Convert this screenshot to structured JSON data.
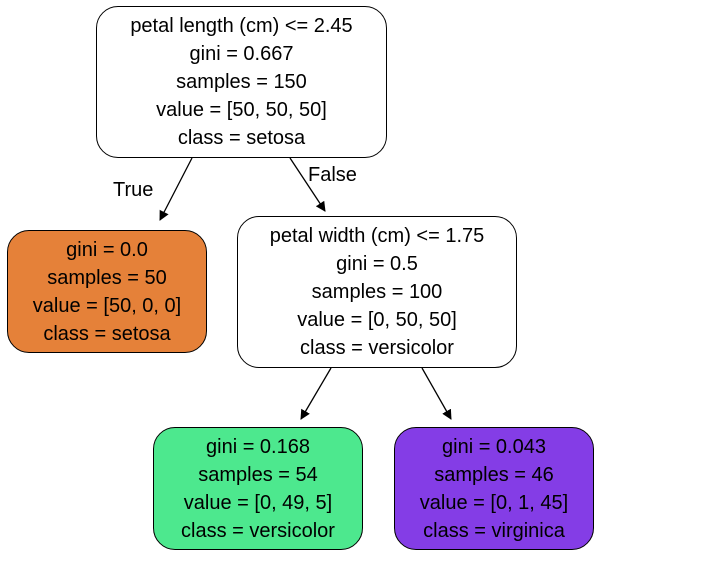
{
  "tree": {
    "root": {
      "lines": [
        "petal length (cm) <= 2.45",
        "gini = 0.667",
        "samples = 150",
        "value = [50, 50, 50]",
        "class = setosa"
      ],
      "fill": "#ffffff"
    },
    "left_leaf": {
      "lines": [
        "gini = 0.0",
        "samples = 50",
        "value = [50, 0, 0]",
        "class = setosa"
      ],
      "fill": "#e58139"
    },
    "right_split": {
      "lines": [
        "petal width (cm) <= 1.75",
        "gini = 0.5",
        "samples = 100",
        "value = [0, 50, 50]",
        "class = versicolor"
      ],
      "fill": "#ffffff"
    },
    "versicolor_leaf": {
      "lines": [
        "gini = 0.168",
        "samples = 54",
        "value = [0, 49, 5]",
        "class = versicolor"
      ],
      "fill": "#4de88e"
    },
    "virginica_leaf": {
      "lines": [
        "gini = 0.043",
        "samples = 46",
        "value = [0, 1, 45]",
        "class = virginica"
      ],
      "fill": "#843de6"
    },
    "edge_labels": {
      "true_label": "True",
      "false_label": "False"
    }
  }
}
